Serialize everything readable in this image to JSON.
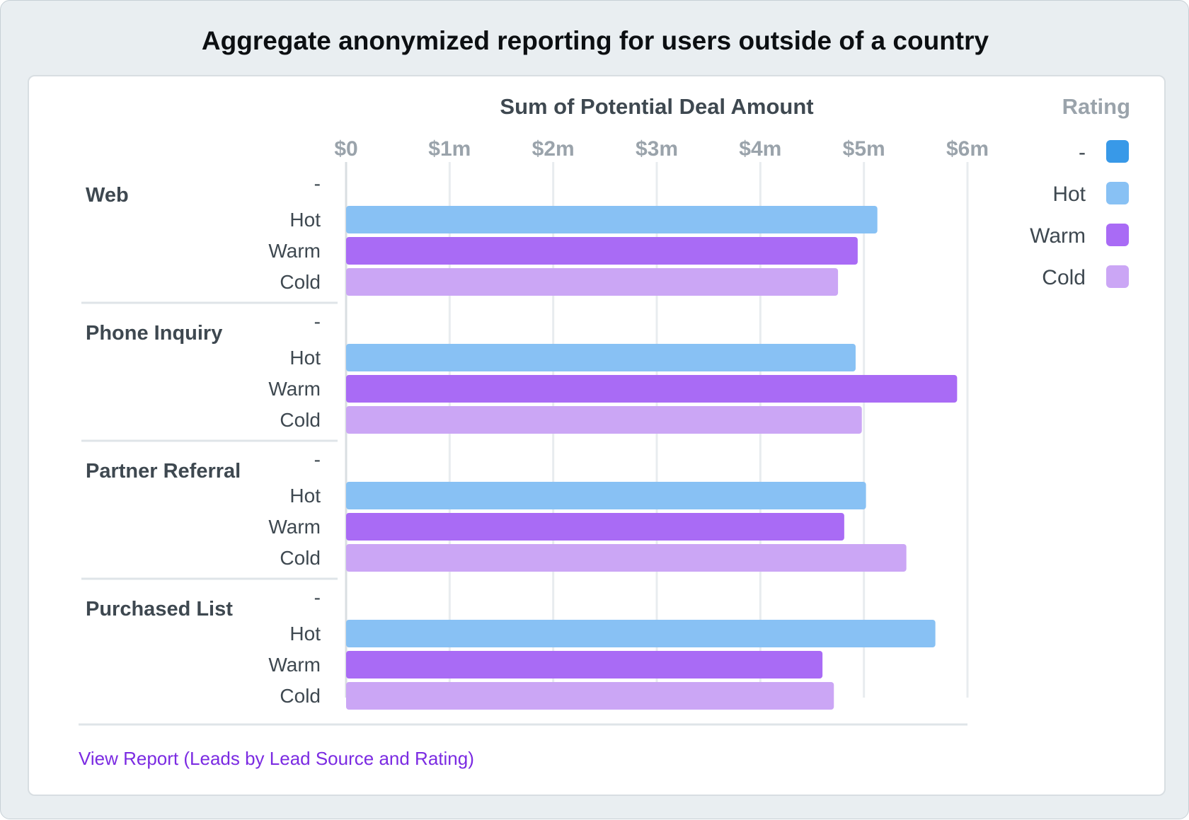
{
  "header": {
    "title": "Aggregate anonymized reporting for users outside of a country"
  },
  "chart_data": {
    "type": "bar",
    "orientation": "horizontal",
    "title": "Sum of Potential Deal Amount",
    "xlabel": "",
    "ylabel": "",
    "xlim": [
      0,
      6
    ],
    "x_ticks": [
      "$0",
      "$1m",
      "$2m",
      "$3m",
      "$4m",
      "$5m",
      "$6m"
    ],
    "groups": [
      "Web",
      "Phone Inquiry",
      "Partner Referral",
      "Purchased List"
    ],
    "categories": [
      "-",
      "Hot",
      "Warm",
      "Cold"
    ],
    "grid": true,
    "legend": {
      "title": "Rating",
      "position": "right"
    },
    "series": [
      {
        "name": "-",
        "color": "#3899e8",
        "values": [
          0,
          0,
          0,
          0
        ]
      },
      {
        "name": "Hot",
        "color": "#88c1f4",
        "values": [
          5.13,
          4.92,
          5.02,
          5.69
        ]
      },
      {
        "name": "Warm",
        "color": "#a96bf5",
        "values": [
          4.94,
          5.9,
          4.81,
          4.6
        ]
      },
      {
        "name": "Cold",
        "color": "#cba6f5",
        "values": [
          4.75,
          4.98,
          5.41,
          4.71
        ]
      }
    ]
  },
  "footer": {
    "link_label": "View Report (Leads by Lead Source and Rating)"
  }
}
